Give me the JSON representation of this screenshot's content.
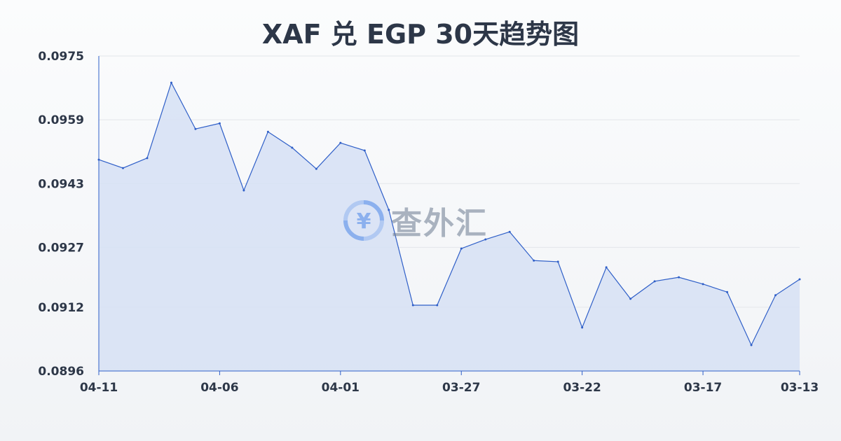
{
  "chart_data": {
    "type": "area",
    "title": "XAF 兑 EGP 30天趋势图",
    "xlabel": "",
    "ylabel": "",
    "ylim": [
      0.0896,
      0.0975
    ],
    "y_ticks": [
      "0.0975",
      "0.0959",
      "0.0943",
      "0.0927",
      "0.0912",
      "0.0896"
    ],
    "x_ticks": [
      "04-11",
      "04-06",
      "04-01",
      "03-27",
      "03-22",
      "03-17",
      "03-13"
    ],
    "grid": "horizontal",
    "x": [
      "04-11",
      "04-10",
      "04-09",
      "04-08",
      "04-07",
      "04-06",
      "04-05",
      "04-04",
      "04-03",
      "04-02",
      "04-01",
      "03-31",
      "03-30",
      "03-29",
      "03-28",
      "03-27",
      "03-26",
      "03-25",
      "03-24",
      "03-23",
      "03-22",
      "03-21",
      "03-20",
      "03-19",
      "03-18",
      "03-17",
      "03-16",
      "03-15",
      "03-14",
      "03-13"
    ],
    "values": [
      0.0949,
      0.09469,
      0.09494,
      0.09683,
      0.09567,
      0.09581,
      0.09413,
      0.0956,
      0.0952,
      0.09467,
      0.09532,
      0.09513,
      0.09364,
      0.09125,
      0.09125,
      0.09267,
      0.0929,
      0.09309,
      0.09237,
      0.09234,
      0.09069,
      0.0922,
      0.09141,
      0.09185,
      0.09195,
      0.09178,
      0.09158,
      0.09025,
      0.0915,
      0.0919
    ],
    "colors": {
      "line": "#2f5fc8",
      "fill": "#d6e0f5",
      "grid": "#e3e6ea",
      "title": "#2d3748"
    }
  },
  "watermark": {
    "text": "查外汇",
    "icon": "yen-exchange-icon"
  }
}
